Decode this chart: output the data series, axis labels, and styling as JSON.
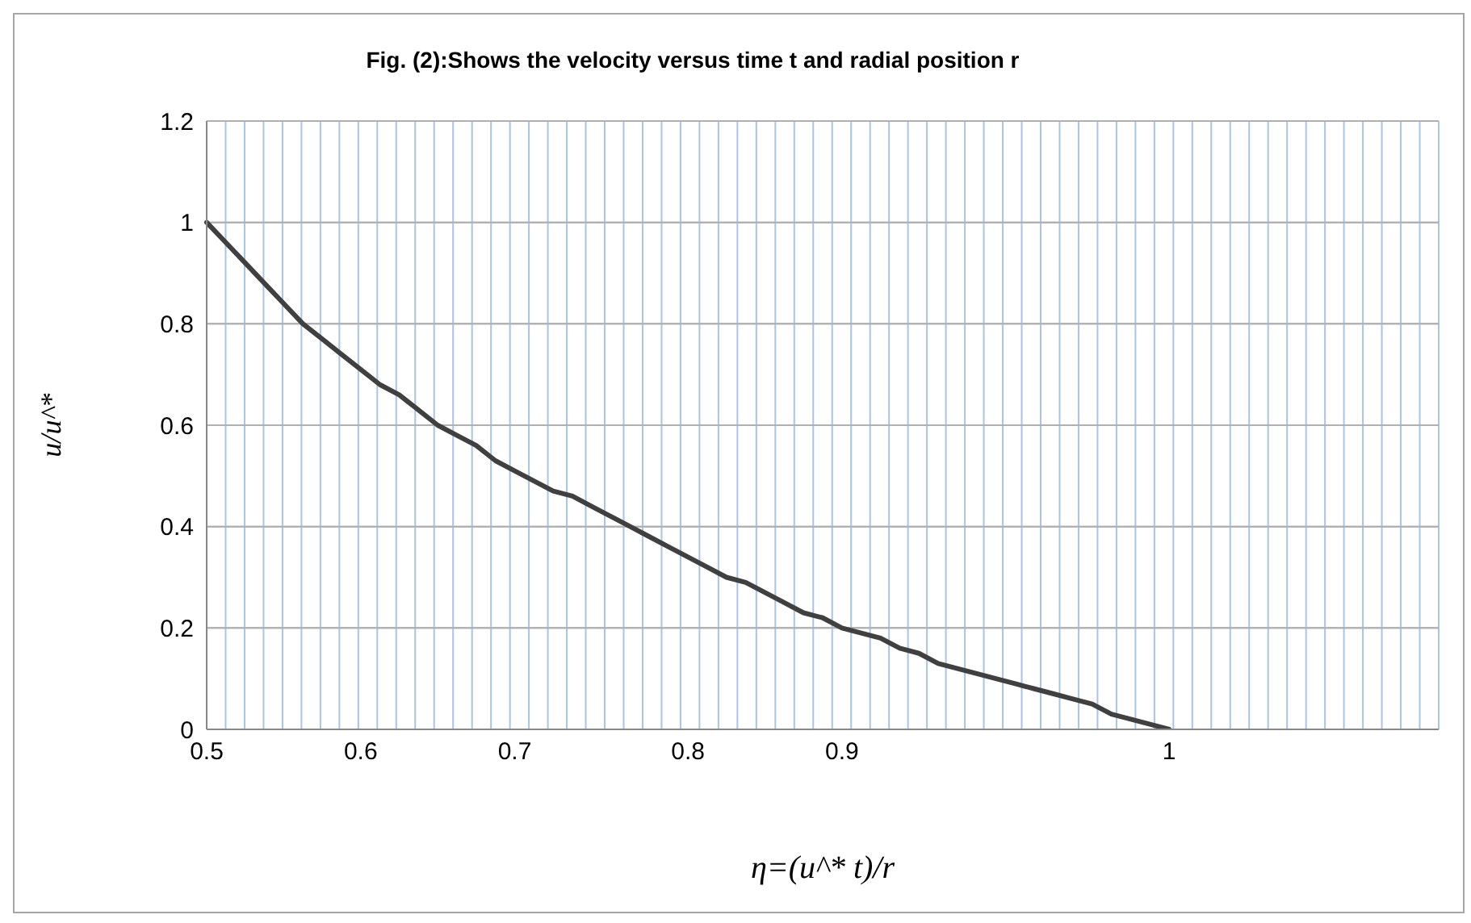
{
  "chart_data": {
    "type": "line",
    "title": "Fig. (2):Shows the velocity versus time t and radial position r",
    "xlabel": "η=(u^* t)/r",
    "ylabel": "u/u^*",
    "categories": [
      "0.5",
      null,
      null,
      null,
      null,
      null,
      null,
      null,
      "0.6",
      null,
      null,
      null,
      null,
      null,
      null,
      null,
      "0.7",
      null,
      null,
      null,
      null,
      null,
      null,
      null,
      null,
      "0.8",
      null,
      null,
      null,
      null,
      null,
      null,
      null,
      "0.9",
      null,
      null,
      null,
      null,
      null,
      null,
      null,
      null,
      null,
      null,
      null,
      null,
      null,
      null,
      null,
      null,
      "1",
      null,
      null,
      null,
      null,
      null,
      null,
      null,
      null,
      null,
      null,
      null,
      null,
      null,
      null
    ],
    "series": [
      {
        "color": "#404040",
        "values": [
          1.0,
          0.96,
          0.92,
          0.88,
          0.84,
          0.8,
          0.77,
          0.74,
          0.71,
          0.68,
          0.66,
          0.63,
          0.6,
          0.58,
          0.56,
          0.53,
          0.51,
          0.49,
          0.47,
          0.46,
          0.44,
          0.42,
          0.4,
          0.38,
          0.36,
          0.34,
          0.32,
          0.3,
          0.29,
          0.27,
          0.25,
          0.23,
          0.22,
          0.2,
          0.19,
          0.18,
          0.16,
          0.15,
          0.13,
          0.12,
          0.11,
          0.1,
          0.09,
          0.08,
          0.07,
          0.06,
          0.05,
          0.03,
          0.02,
          0.01,
          0,
          null,
          null,
          null,
          null,
          null,
          null,
          null,
          null,
          null,
          null,
          null,
          null,
          null,
          null
        ]
      }
    ],
    "ylim": [
      0,
      1.2
    ],
    "yticks": [
      0,
      0.2,
      0.4,
      0.6,
      0.8,
      1,
      1.2
    ],
    "grid": true,
    "legend": false,
    "marker": "none",
    "line_style": "solid"
  }
}
